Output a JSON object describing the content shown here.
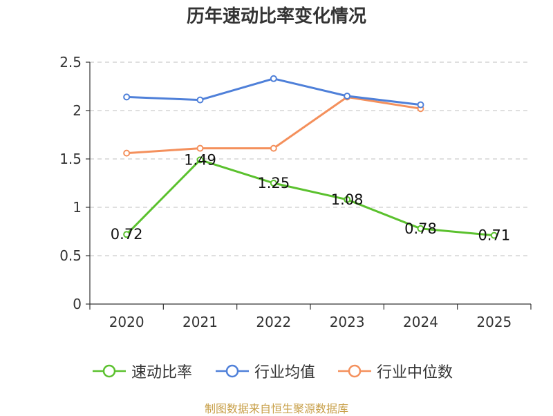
{
  "chart_data": {
    "type": "line",
    "title": "历年速动比率变化情况",
    "categories": [
      "2020",
      "2021",
      "2022",
      "2023",
      "2024",
      "2025"
    ],
    "y_ticks": [
      "0",
      "0.5",
      "1",
      "1.5",
      "2",
      "2.5"
    ],
    "ylim": [
      0,
      2.5
    ],
    "grid": true,
    "legend_position": "bottom",
    "series": [
      {
        "name": "速动比率",
        "color": "#5bc12e",
        "values": [
          0.72,
          1.49,
          1.25,
          1.08,
          0.78,
          0.71
        ],
        "labels": [
          "0.72",
          "1.49",
          "1.25",
          "1.08",
          "0.78",
          "0.71"
        ]
      },
      {
        "name": "行业均值",
        "color": "#4f80d9",
        "values": [
          2.14,
          2.11,
          2.33,
          2.15,
          2.06,
          null
        ]
      },
      {
        "name": "行业中位数",
        "color": "#f4905c",
        "values": [
          1.56,
          1.61,
          1.61,
          2.14,
          2.02,
          null
        ]
      }
    ]
  },
  "source": "制图数据来自恒生聚源数据库"
}
